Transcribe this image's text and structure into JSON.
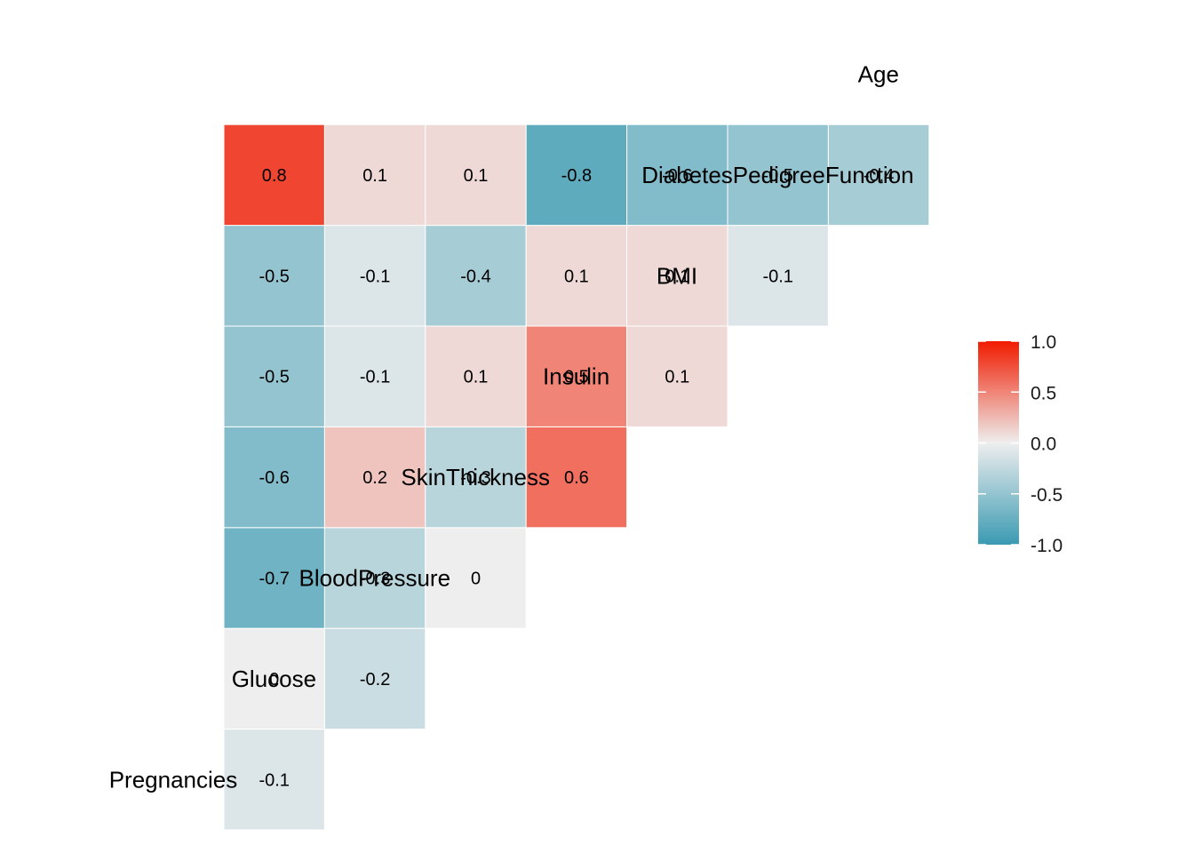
{
  "chart_data": {
    "type": "heatmap",
    "variables": [
      "Pregnancies",
      "Glucose",
      "BloodPressure",
      "SkinThickness",
      "Insulin",
      "BMI",
      "DiabetesPedigreeFunction",
      "Age"
    ],
    "cell_labels": [
      [
        "-0.1"
      ],
      [
        "0",
        "-0.2"
      ],
      [
        "-0.7",
        "-0.3",
        "0"
      ],
      [
        "-0.6",
        "0.2",
        "-0.3",
        "0.6"
      ],
      [
        "-0.5",
        "-0.1",
        "0.1",
        "0.5",
        "0.1"
      ],
      [
        "-0.5",
        "-0.1",
        "-0.4",
        "0.1",
        "0.1",
        "-0.1"
      ],
      [
        "0.8",
        "0.1",
        "0.1",
        "-0.8",
        "-0.6",
        "-0.5",
        "-0.4"
      ]
    ],
    "values": [
      [
        -0.1
      ],
      [
        0.0,
        -0.2
      ],
      [
        -0.7,
        -0.3,
        0.0
      ],
      [
        -0.6,
        0.2,
        -0.3,
        0.6
      ],
      [
        -0.5,
        -0.1,
        0.1,
        0.5,
        0.1
      ],
      [
        -0.5,
        -0.1,
        -0.4,
        0.1,
        0.1,
        -0.1
      ],
      [
        0.8,
        0.1,
        0.1,
        -0.8,
        -0.6,
        -0.5,
        -0.4
      ]
    ],
    "legend": {
      "position": "right",
      "range": [
        -1.0,
        1.0
      ],
      "ticks": [
        "1.0",
        "0.5",
        "0.0",
        "-0.5",
        "-1.0"
      ],
      "colors": {
        "low": "#3A9AB2",
        "mid": "#EEEEEE",
        "high": "#F11B00"
      }
    },
    "grid": false
  }
}
